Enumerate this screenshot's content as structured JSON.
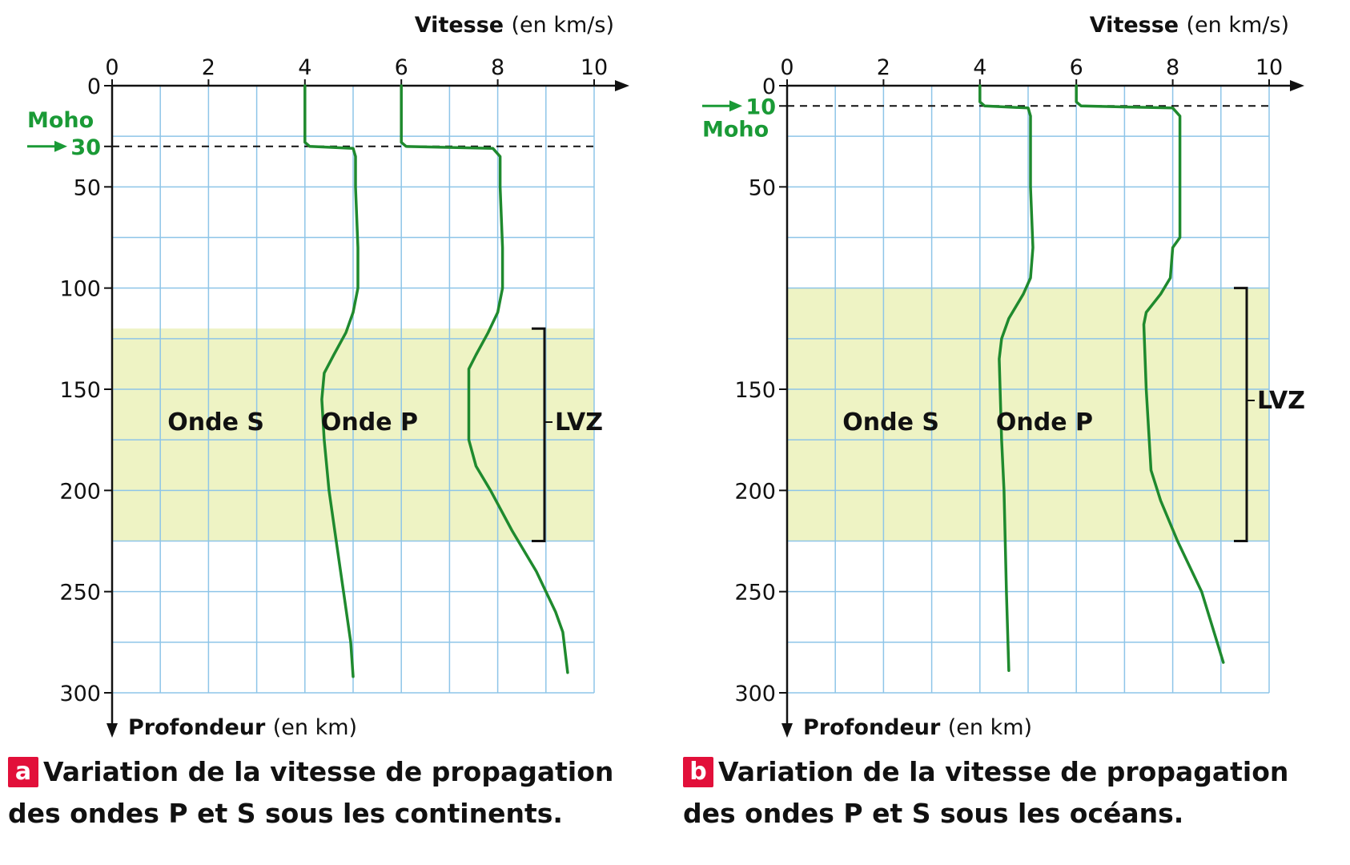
{
  "colors": {
    "grid": "#8ec5e8",
    "lvz_band": "#eef3c4",
    "curve": "#1f8a2e",
    "moho": "#1a9a36",
    "badge": "#e2103a"
  },
  "chart_data": [
    {
      "type": "line",
      "x_axis": {
        "title": "Vitesse",
        "unit": "(en km/s)",
        "range": [
          0,
          10
        ],
        "ticks": [
          "0",
          "2",
          "4",
          "6",
          "8",
          "10"
        ]
      },
      "y_axis": {
        "title": "Profondeur",
        "unit": "(en  km)",
        "range": [
          0,
          300
        ],
        "ticks": [
          "0",
          "30",
          "50",
          "100",
          "150",
          "200",
          "250",
          "300"
        ],
        "inverted": true
      },
      "moho": {
        "label": "Moho",
        "depth": 30,
        "depth_label": "30"
      },
      "lvz": {
        "label": "LVZ",
        "from": 120,
        "to": 225
      },
      "series": [
        {
          "name": "Onde S",
          "points": [
            [
              4.0,
              0
            ],
            [
              4.0,
              28
            ],
            [
              4.1,
              30
            ],
            [
              5.0,
              31
            ],
            [
              5.05,
              35
            ],
            [
              5.05,
              50
            ],
            [
              5.1,
              80
            ],
            [
              5.1,
              100
            ],
            [
              5.0,
              112
            ],
            [
              4.85,
              122
            ],
            [
              4.6,
              133
            ],
            [
              4.4,
              142
            ],
            [
              4.35,
              155
            ],
            [
              4.4,
              175
            ],
            [
              4.5,
              200
            ],
            [
              4.65,
              225
            ],
            [
              4.8,
              250
            ],
            [
              4.95,
              275
            ],
            [
              5.0,
              292
            ]
          ]
        },
        {
          "name": "Onde P",
          "points": [
            [
              6.0,
              0
            ],
            [
              6.0,
              28
            ],
            [
              6.1,
              30
            ],
            [
              7.9,
              31
            ],
            [
              8.05,
              35
            ],
            [
              8.05,
              50
            ],
            [
              8.1,
              80
            ],
            [
              8.1,
              100
            ],
            [
              8.0,
              112
            ],
            [
              7.8,
              122
            ],
            [
              7.55,
              133
            ],
            [
              7.4,
              140
            ],
            [
              7.4,
              175
            ],
            [
              7.55,
              188
            ],
            [
              7.85,
              200
            ],
            [
              8.3,
              220
            ],
            [
              8.8,
              240
            ],
            [
              9.2,
              260
            ],
            [
              9.35,
              270
            ],
            [
              9.45,
              290
            ]
          ]
        }
      ]
    },
    {
      "type": "line",
      "x_axis": {
        "title": "Vitesse",
        "unit": "(en km/s)",
        "range": [
          0,
          10
        ],
        "ticks": [
          "0",
          "2",
          "4",
          "6",
          "8",
          "10"
        ]
      },
      "y_axis": {
        "title": "Profondeur",
        "unit": "(en km)",
        "range": [
          0,
          300
        ],
        "ticks": [
          "0",
          "10",
          "50",
          "150",
          "200",
          "250",
          "300"
        ],
        "inverted": true
      },
      "moho": {
        "label": "Moho",
        "depth": 10,
        "depth_label": "10"
      },
      "lvz": {
        "label": "LVZ",
        "from": 100,
        "to": 225
      },
      "series": [
        {
          "name": "Onde S",
          "points": [
            [
              4.0,
              0
            ],
            [
              4.0,
              8
            ],
            [
              4.1,
              10
            ],
            [
              5.0,
              11
            ],
            [
              5.05,
              15
            ],
            [
              5.05,
              50
            ],
            [
              5.1,
              80
            ],
            [
              5.05,
              95
            ],
            [
              4.9,
              103
            ],
            [
              4.6,
              115
            ],
            [
              4.45,
              125
            ],
            [
              4.4,
              135
            ],
            [
              4.45,
              175
            ],
            [
              4.5,
              200
            ],
            [
              4.55,
              250
            ],
            [
              4.6,
              289
            ]
          ]
        },
        {
          "name": "Onde P",
          "points": [
            [
              6.0,
              0
            ],
            [
              6.0,
              8
            ],
            [
              6.1,
              10
            ],
            [
              8.0,
              11
            ],
            [
              8.15,
              15
            ],
            [
              8.15,
              50
            ],
            [
              8.15,
              75
            ],
            [
              8.0,
              80
            ],
            [
              7.95,
              95
            ],
            [
              7.75,
              103
            ],
            [
              7.45,
              112
            ],
            [
              7.4,
              118
            ],
            [
              7.45,
              150
            ],
            [
              7.55,
              190
            ],
            [
              7.75,
              205
            ],
            [
              8.1,
              225
            ],
            [
              8.6,
              250
            ],
            [
              9.05,
              285
            ]
          ]
        }
      ]
    }
  ],
  "captions": [
    {
      "badge": "a",
      "line1": "Variation de la vitesse de propagation",
      "line2": "des ondes P et S sous les continents."
    },
    {
      "badge": "b",
      "line1": "Variation de la vitesse de propagation",
      "line2": "des ondes P et S sous les océans."
    }
  ]
}
